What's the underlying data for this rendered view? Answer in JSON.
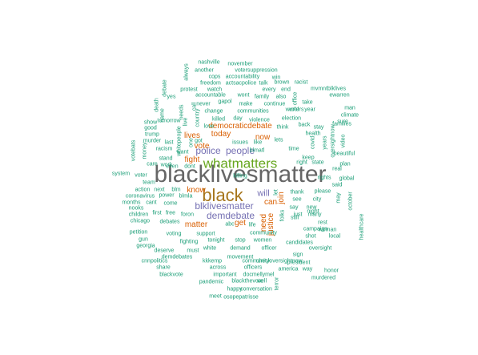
{
  "palette": {
    "teal": "#1B9E77",
    "orange": "#D95F02",
    "purple": "#7570B3",
    "green": "#66A61E",
    "gold": "#A6761D",
    "gray": "#666666"
  },
  "words": [
    {
      "text": "blacklivesmatter",
      "color": "#666666"
    },
    {
      "text": "black",
      "color": "#A6761D"
    },
    {
      "text": "whatmatters",
      "color": "#66A61E"
    },
    {
      "text": "blklivesmatter",
      "color": "#7570B3"
    },
    {
      "text": "demdebate",
      "color": "#7570B3"
    },
    {
      "text": "police",
      "color": "#7570B3"
    },
    {
      "text": "people",
      "color": "#7570B3"
    },
    {
      "text": "will",
      "color": "#7570B3"
    },
    {
      "text": "know",
      "color": "#D95F02"
    },
    {
      "text": "lives",
      "color": "#D95F02"
    },
    {
      "text": "today",
      "color": "#D95F02"
    },
    {
      "text": "now",
      "color": "#D95F02"
    },
    {
      "text": "vote",
      "color": "#D95F02"
    },
    {
      "text": "fight",
      "color": "#D95F02"
    },
    {
      "text": "matter",
      "color": "#D95F02"
    },
    {
      "text": "get",
      "color": "#D95F02"
    },
    {
      "text": "can",
      "color": "#D95F02"
    },
    {
      "text": "need",
      "color": "#D95F02"
    },
    {
      "text": "justice",
      "color": "#D95F02"
    },
    {
      "text": "join",
      "color": "#D95F02"
    },
    {
      "text": "democraticdebate",
      "color": "#D95F02"
    },
    {
      "text": "nashville",
      "color": "#1B9E77"
    },
    {
      "text": "november",
      "color": "#1B9E77"
    },
    {
      "text": "another",
      "color": "#1B9E77"
    },
    {
      "text": "votersuppression",
      "color": "#1B9E77"
    },
    {
      "text": "cops",
      "color": "#1B9E77"
    },
    {
      "text": "accountability",
      "color": "#1B9E77"
    },
    {
      "text": "always",
      "color": "#1B9E77"
    },
    {
      "text": "win",
      "color": "#1B9E77"
    },
    {
      "text": "freedom",
      "color": "#1B9E77"
    },
    {
      "text": "actsacpolice",
      "color": "#1B9E77"
    },
    {
      "text": "talk",
      "color": "#1B9E77"
    },
    {
      "text": "brown",
      "color": "#1B9E77"
    },
    {
      "text": "racist",
      "color": "#1B9E77"
    },
    {
      "text": "protest",
      "color": "#1B9E77"
    },
    {
      "text": "watch",
      "color": "#1B9E77"
    },
    {
      "text": "every",
      "color": "#1B9E77"
    },
    {
      "text": "end",
      "color": "#1B9E77"
    },
    {
      "text": "mvmntblklives",
      "color": "#1B9E77"
    },
    {
      "text": "debate",
      "color": "#1B9E77"
    },
    {
      "text": "accountable",
      "color": "#1B9E77"
    },
    {
      "text": "wont",
      "color": "#1B9E77"
    },
    {
      "text": "family",
      "color": "#1B9E77"
    },
    {
      "text": "also",
      "color": "#1B9E77"
    },
    {
      "text": "office",
      "color": "#1B9E77"
    },
    {
      "text": "ewarren",
      "color": "#1B9E77"
    },
    {
      "text": "yes",
      "color": "#1B9E77"
    },
    {
      "text": "gapol",
      "color": "#1B9E77"
    },
    {
      "text": "take",
      "color": "#1B9E77"
    },
    {
      "text": "never",
      "color": "#1B9E77"
    },
    {
      "text": "make",
      "color": "#1B9E77"
    },
    {
      "text": "continue",
      "color": "#1B9E77"
    },
    {
      "text": "world",
      "color": "#1B9E77"
    },
    {
      "text": "year",
      "color": "#1B9E77"
    },
    {
      "text": "man",
      "color": "#1B9E77"
    },
    {
      "text": "climate",
      "color": "#1B9E77"
    },
    {
      "text": "death",
      "color": "#1B9E77"
    },
    {
      "text": "name",
      "color": "#1B9E77"
    },
    {
      "text": "tomorrow",
      "color": "#1B9E77"
    },
    {
      "text": "needs",
      "color": "#1B9E77"
    },
    {
      "text": "call",
      "color": "#1B9E77"
    },
    {
      "text": "change",
      "color": "#1B9E77"
    },
    {
      "text": "communities",
      "color": "#1B9E77"
    },
    {
      "text": "voters",
      "color": "#1B9E77"
    },
    {
      "text": "sure",
      "color": "#1B9E77"
    },
    {
      "text": "show",
      "color": "#1B9E77"
    },
    {
      "text": "good",
      "color": "#1B9E77"
    },
    {
      "text": "killed",
      "color": "#1B9E77"
    },
    {
      "text": "day",
      "color": "#1B9E77"
    },
    {
      "text": "violence",
      "color": "#1B9E77"
    },
    {
      "text": "election",
      "color": "#1B9E77"
    },
    {
      "text": "back",
      "color": "#1B9E77"
    },
    {
      "text": "stay",
      "color": "#1B9E77"
    },
    {
      "text": "families",
      "color": "#1B9E77"
    },
    {
      "text": "live",
      "color": "#1B9E77"
    },
    {
      "text": "country",
      "color": "#1B9E77"
    },
    {
      "text": "love",
      "color": "#1B9E77"
    },
    {
      "text": "think",
      "color": "#1B9E77"
    },
    {
      "text": "health",
      "color": "#1B9E77"
    },
    {
      "text": "trump",
      "color": "#1B9E77"
    },
    {
      "text": "votebats",
      "color": "#1B9E77"
    },
    {
      "text": "murder",
      "color": "#1B9E77"
    },
    {
      "text": "last",
      "color": "#1B9E77"
    },
    {
      "text": "got",
      "color": "#1B9E77"
    },
    {
      "text": "issues",
      "color": "#1B9E77"
    },
    {
      "text": "like",
      "color": "#1B9E77"
    },
    {
      "text": "lets",
      "color": "#1B9E77"
    },
    {
      "text": "covid",
      "color": "#1B9E77"
    },
    {
      "text": "video",
      "color": "#1B9E77"
    },
    {
      "text": "money",
      "color": "#1B9E77"
    },
    {
      "text": "racism",
      "color": "#1B9E77"
    },
    {
      "text": "whitepeople",
      "color": "#1B9E77"
    },
    {
      "text": "one",
      "color": "#1B9E77"
    },
    {
      "text": "blmatl",
      "color": "#1B9E77"
    },
    {
      "text": "time",
      "color": "#1B9E77"
    },
    {
      "text": "years",
      "color": "#1B9E77"
    },
    {
      "text": "oversightnow",
      "color": "#1B9E77"
    },
    {
      "text": "care",
      "color": "#1B9E77"
    },
    {
      "text": "want",
      "color": "#1B9E77"
    },
    {
      "text": "beautiful",
      "color": "#1B9E77"
    },
    {
      "text": "stand",
      "color": "#1B9E77"
    },
    {
      "text": "keep",
      "color": "#1B9E77"
    },
    {
      "text": "even",
      "color": "#1B9E77"
    },
    {
      "text": "dont",
      "color": "#1B9E77"
    },
    {
      "text": "state",
      "color": "#1B9E77"
    },
    {
      "text": "right",
      "color": "#1B9E77"
    },
    {
      "text": "plan",
      "color": "#1B9E77"
    },
    {
      "text": "real",
      "color": "#1B9E77"
    },
    {
      "text": "work",
      "color": "#1B9E77"
    },
    {
      "text": "system",
      "color": "#1B9E77"
    },
    {
      "text": "voter",
      "color": "#1B9E77"
    },
    {
      "text": "rights",
      "color": "#1B9E77"
    },
    {
      "text": "global",
      "color": "#1B9E77"
    },
    {
      "text": "team",
      "color": "#1B9E77"
    },
    {
      "text": "action",
      "color": "#1B9E77"
    },
    {
      "text": "next",
      "color": "#1B9E77"
    },
    {
      "text": "blm",
      "color": "#1B9E77"
    },
    {
      "text": "said",
      "color": "#1B9E77"
    },
    {
      "text": "let",
      "color": "#1B9E77"
    },
    {
      "text": "thank",
      "color": "#1B9E77"
    },
    {
      "text": "please",
      "color": "#1B9E77"
    },
    {
      "text": "coronavirus",
      "color": "#1B9E77"
    },
    {
      "text": "power",
      "color": "#1B9E77"
    },
    {
      "text": "blmla",
      "color": "#1B9E77"
    },
    {
      "text": "months",
      "color": "#1B9E77"
    },
    {
      "text": "cant",
      "color": "#1B9E77"
    },
    {
      "text": "come",
      "color": "#1B9E77"
    },
    {
      "text": "nooks",
      "color": "#1B9E77"
    },
    {
      "text": "see",
      "color": "#1B9E77"
    },
    {
      "text": "city",
      "color": "#1B9E77"
    },
    {
      "text": "new",
      "color": "#1B9E77"
    },
    {
      "text": "say",
      "color": "#1B9E77"
    },
    {
      "text": "night",
      "color": "#1B9E77"
    },
    {
      "text": "first",
      "color": "#1B9E77"
    },
    {
      "text": "free",
      "color": "#1B9E77"
    },
    {
      "text": "foron",
      "color": "#1B9E77"
    },
    {
      "text": "children",
      "color": "#1B9E77"
    },
    {
      "text": "chicago",
      "color": "#1B9E77"
    },
    {
      "text": "debates",
      "color": "#1B9E77"
    },
    {
      "text": "still",
      "color": "#1B9E77"
    },
    {
      "text": "just",
      "color": "#1B9E77"
    },
    {
      "text": "many",
      "color": "#1B9E77"
    },
    {
      "text": "may",
      "color": "#1B9E77"
    },
    {
      "text": "october",
      "color": "#1B9E77"
    },
    {
      "text": "abc",
      "color": "#1B9E77"
    },
    {
      "text": "life",
      "color": "#1B9E77"
    },
    {
      "text": "folks",
      "color": "#1B9E77"
    },
    {
      "text": "rest",
      "color": "#1B9E77"
    },
    {
      "text": "woman",
      "color": "#1B9E77"
    },
    {
      "text": "community",
      "color": "#1B9E77"
    },
    {
      "text": "campaign",
      "color": "#1B9E77"
    },
    {
      "text": "petition",
      "color": "#1B9E77"
    },
    {
      "text": "voting",
      "color": "#1B9E77"
    },
    {
      "text": "support",
      "color": "#1B9E77"
    },
    {
      "text": "local",
      "color": "#1B9E77"
    },
    {
      "text": "healthcare",
      "color": "#1B9E77"
    },
    {
      "text": "gun",
      "color": "#1B9E77"
    },
    {
      "text": "georgia",
      "color": "#1B9E77"
    },
    {
      "text": "fighting",
      "color": "#1B9E77"
    },
    {
      "text": "tonight",
      "color": "#1B9E77"
    },
    {
      "text": "stop",
      "color": "#1B9E77"
    },
    {
      "text": "women",
      "color": "#1B9E77"
    },
    {
      "text": "shot",
      "color": "#1B9E77"
    },
    {
      "text": "candidates",
      "color": "#1B9E77"
    },
    {
      "text": "white",
      "color": "#1B9E77"
    },
    {
      "text": "officer",
      "color": "#1B9E77"
    },
    {
      "text": "oversight",
      "color": "#1B9E77"
    },
    {
      "text": "deserve",
      "color": "#1B9E77"
    },
    {
      "text": "must",
      "color": "#1B9E77"
    },
    {
      "text": "demand",
      "color": "#1B9E77"
    },
    {
      "text": "sign",
      "color": "#1B9E77"
    },
    {
      "text": "demdebates",
      "color": "#1B9E77"
    },
    {
      "text": "movement",
      "color": "#1B9E77"
    },
    {
      "text": "check",
      "color": "#1B9E77"
    },
    {
      "text": "cnnpolitics",
      "color": "#1B9E77"
    },
    {
      "text": "kkkemp",
      "color": "#1B9E77"
    },
    {
      "text": "communityoversightnow",
      "color": "#1B9E77"
    },
    {
      "text": "president",
      "color": "#1B9E77"
    },
    {
      "text": "share",
      "color": "#1B9E77"
    },
    {
      "text": "across",
      "color": "#1B9E77"
    },
    {
      "text": "officers",
      "color": "#1B9E77"
    },
    {
      "text": "america",
      "color": "#1B9E77"
    },
    {
      "text": "way",
      "color": "#1B9E77"
    },
    {
      "text": "honor",
      "color": "#1B9E77"
    },
    {
      "text": "blackvote",
      "color": "#1B9E77"
    },
    {
      "text": "important",
      "color": "#1B9E77"
    },
    {
      "text": "docmellymel",
      "color": "#1B9E77"
    },
    {
      "text": "murdered",
      "color": "#1B9E77"
    },
    {
      "text": "pandemic",
      "color": "#1B9E77"
    },
    {
      "text": "blackthevote",
      "color": "#1B9E77"
    },
    {
      "text": "well",
      "color": "#1B9E77"
    },
    {
      "text": "terror",
      "color": "#1B9E77"
    },
    {
      "text": "happy",
      "color": "#1B9E77"
    },
    {
      "text": "conversation",
      "color": "#1B9E77"
    },
    {
      "text": "meet",
      "color": "#1B9E77"
    },
    {
      "text": "osopepatrisse",
      "color": "#1B9E77"
    },
    {
      "text": "killing",
      "color": "#1B9E77"
    }
  ]
}
